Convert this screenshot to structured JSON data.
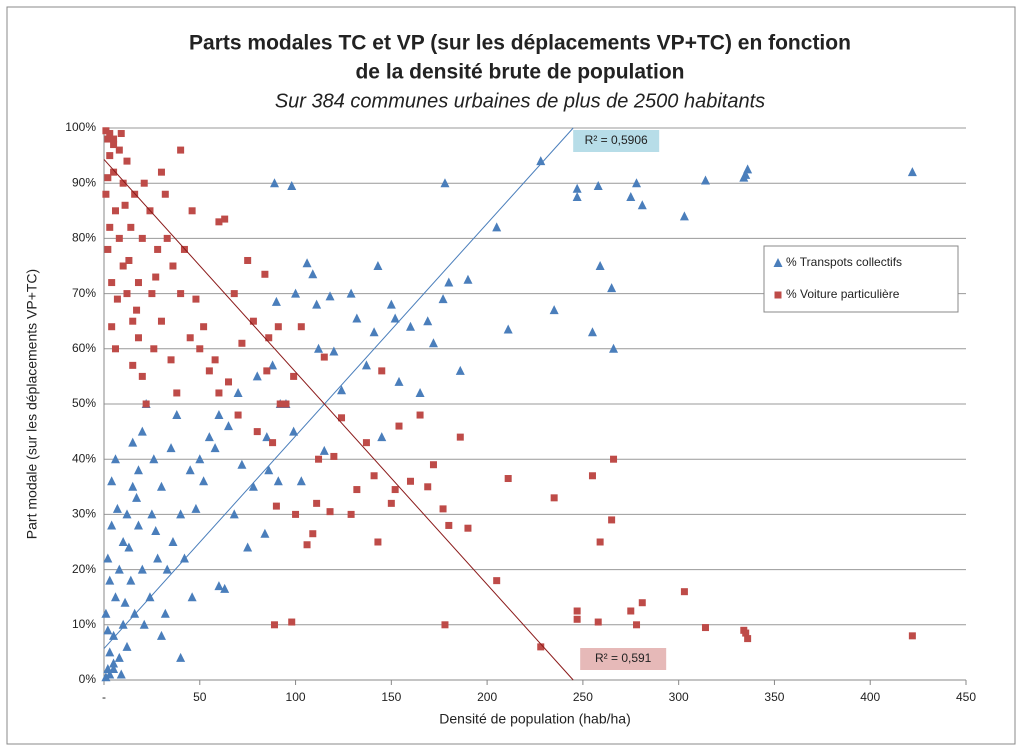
{
  "chart_data": {
    "type": "scatter",
    "title": [
      "Parts modales TC et VP (sur les déplacements VP+TC) en fonction",
      "de la densité brute de population"
    ],
    "subtitle": "Sur  384  communes urbaines de plus de 2500 habitants",
    "x_label": "Densité de population (hab/ha)",
    "y_label": "Part modale (sur les déplacements  VP+TC)",
    "xlim": [
      0,
      450
    ],
    "xticks": [
      {
        "value": 0,
        "label": "-"
      },
      50,
      100,
      150,
      200,
      250,
      300,
      350,
      400,
      450
    ],
    "ylim": [
      0,
      100
    ],
    "yticks": [
      {
        "value": 0,
        "label": "0%"
      },
      {
        "value": 10,
        "label": "10%"
      },
      {
        "value": 20,
        "label": "20%"
      },
      {
        "value": 30,
        "label": "30%"
      },
      {
        "value": 40,
        "label": "40%"
      },
      {
        "value": 50,
        "label": "50%"
      },
      {
        "value": 60,
        "label": "60%"
      },
      {
        "value": 70,
        "label": "70%"
      },
      {
        "value": 80,
        "label": "80%"
      },
      {
        "value": 90,
        "label": "90%"
      },
      {
        "value": 100,
        "label": "100%"
      }
    ],
    "grid": true,
    "legend": "right",
    "x": [
      89,
      98,
      178,
      228,
      247,
      247,
      258,
      275,
      278,
      281,
      303,
      314,
      334,
      335,
      336,
      422,
      205,
      259,
      265,
      266,
      255,
      235,
      211,
      190,
      180,
      186,
      169,
      172,
      177,
      165,
      160,
      154,
      152,
      150,
      143,
      141,
      132,
      129,
      118,
      109,
      106,
      111,
      100,
      90,
      120,
      124,
      112,
      137,
      99,
      95,
      84,
      75,
      86,
      91,
      103,
      115,
      145,
      60,
      63,
      40,
      30,
      46,
      68,
      78,
      55,
      60,
      70,
      80,
      50,
      2,
      3,
      5,
      1,
      6,
      8,
      10,
      4,
      12,
      15,
      18,
      20,
      22,
      25,
      28,
      30,
      35,
      38,
      40,
      45,
      10,
      14,
      16,
      20,
      24,
      5,
      7,
      2,
      12,
      18,
      26,
      33,
      3,
      9,
      1,
      11,
      13,
      17,
      21,
      27,
      32,
      36,
      42,
      48,
      52,
      58,
      65,
      72,
      85,
      88,
      92,
      4,
      6,
      15,
      3,
      8,
      5,
      2
    ],
    "series": [
      {
        "name": "% Transpots collectifs",
        "color": "#4a7ebb",
        "marker": "triangle",
        "values": [
          90,
          89.5,
          90,
          94,
          89,
          87.5,
          89.5,
          87.5,
          90,
          86,
          84,
          90.5,
          91,
          91.5,
          92.5,
          92,
          82,
          75,
          71,
          60,
          63,
          67,
          63.5,
          72.5,
          72,
          56,
          65,
          61,
          69,
          52,
          64,
          54,
          65.5,
          68,
          75,
          63,
          65.5,
          70,
          69.5,
          73.5,
          75.5,
          68,
          70,
          68.5,
          59.5,
          52.5,
          60,
          57,
          45,
          50,
          26.5,
          24,
          38,
          36,
          36,
          41.5,
          44,
          17,
          16.5,
          4,
          8,
          15,
          30,
          35,
          44,
          48,
          52,
          55,
          40,
          2,
          5,
          8,
          12,
          15,
          20,
          25,
          28,
          30,
          35,
          38,
          45,
          50,
          30,
          22,
          35,
          42,
          48,
          30,
          38,
          10,
          18,
          12,
          20,
          15,
          3,
          31,
          22,
          6,
          28,
          40,
          20,
          18,
          1,
          0.5,
          14,
          24,
          33,
          10,
          27,
          12,
          25,
          22,
          31,
          36,
          42,
          46,
          39,
          44,
          57,
          50,
          36,
          40,
          43,
          1,
          4,
          2,
          9
        ]
      },
      {
        "name": "% Voiture particulière",
        "color": "#be4b48",
        "marker": "square",
        "values": [
          10,
          10.5,
          10,
          6,
          11,
          12.5,
          10.5,
          12.5,
          10,
          14,
          16,
          9.5,
          9,
          8.5,
          7.5,
          8,
          18,
          25,
          29,
          40,
          37,
          33,
          36.5,
          27.5,
          28,
          44,
          35,
          39,
          31,
          48,
          36,
          46,
          34.5,
          32,
          25,
          37,
          34.5,
          30,
          30.5,
          26.5,
          24.5,
          32,
          30,
          31.5,
          40.5,
          47.5,
          40,
          43,
          55,
          50,
          73.5,
          76,
          62,
          64,
          64,
          58.5,
          56,
          83,
          83.5,
          96,
          92,
          85,
          70,
          65,
          56,
          52,
          48,
          45,
          60,
          98,
          95,
          92,
          88,
          85,
          80,
          75,
          72,
          70,
          65,
          62,
          55,
          50,
          70,
          78,
          65,
          58,
          52,
          70,
          62,
          90,
          82,
          88,
          80,
          85,
          97,
          69,
          78,
          94,
          72,
          60,
          80,
          82,
          99,
          99.5,
          86,
          76,
          67,
          90,
          73,
          88,
          75,
          78,
          69,
          64,
          58,
          54,
          61,
          56,
          43,
          50,
          64,
          60,
          57,
          99,
          96,
          98,
          91
        ]
      }
    ],
    "trendlines": [
      {
        "series": 0,
        "slope": 0.385,
        "intercept": 5.7,
        "color": "#4a7ebb",
        "label": "R² = 0,5906",
        "label_color": "#b7dde8"
      },
      {
        "series": 1,
        "slope": -0.385,
        "intercept": 94.3,
        "color": "#8b1a1a",
        "label": "R² = 0,591",
        "label_color": "#e6b9b8"
      }
    ]
  }
}
